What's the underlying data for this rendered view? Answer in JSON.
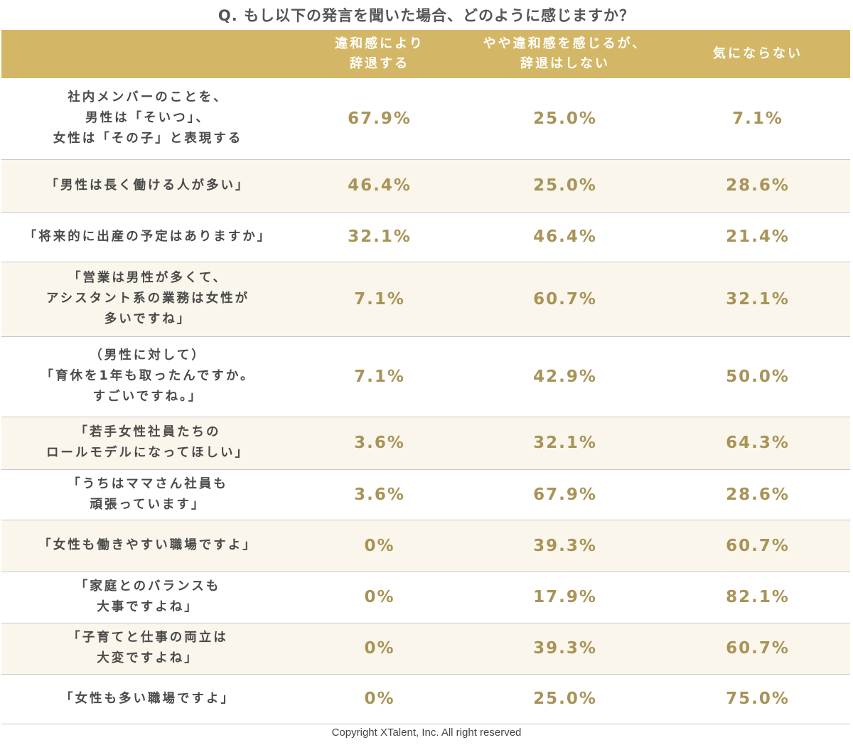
{
  "title": "Q. もし以下の発言を聞いた場合、どのように感じますか？",
  "columns": [
    "違和感により\n辞退する",
    "やや違和感を感じるが、\n辞退はしない",
    "気にならない"
  ],
  "chart_data": {
    "type": "table",
    "series": [
      {
        "name": "違和感により辞退する"
      },
      {
        "name": "やや違和感を感じるが、辞退はしない"
      },
      {
        "name": "気にならない"
      }
    ],
    "rows": [
      {
        "label": "社内メンバーのことを、\n男性は「そいつ」、\n女性は「その子」と表現する",
        "values": [
          "67.9%",
          "25.0%",
          "7.1%"
        ]
      },
      {
        "label": "「男性は長く働ける人が多い」",
        "values": [
          "46.4%",
          "25.0%",
          "28.6%"
        ]
      },
      {
        "label": "「将来的に出産の予定はありますか」",
        "values": [
          "32.1%",
          "46.4%",
          "21.4%"
        ]
      },
      {
        "label": "「営業は男性が多くて、\nアシスタント系の業務は女性が\n多いですね」",
        "values": [
          "7.1%",
          "60.7%",
          "32.1%"
        ]
      },
      {
        "label": "（男性に対して）\n「育休を1年も取ったんですか。\nすごいですね。」",
        "values": [
          "7.1%",
          "42.9%",
          "50.0%"
        ]
      },
      {
        "label": "「若手女性社員たちの\nロールモデルになってほしい」",
        "values": [
          "3.6%",
          "32.1%",
          "64.3%"
        ]
      },
      {
        "label": "「うちはママさん社員も\n頑張っています」",
        "values": [
          "3.6%",
          "67.9%",
          "28.6%"
        ]
      },
      {
        "label": "「女性も働きやすい職場ですよ」",
        "values": [
          "0%",
          "39.3%",
          "60.7%"
        ]
      },
      {
        "label": "「家庭とのバランスも\n大事ですよね」",
        "values": [
          "0%",
          "17.9%",
          "82.1%"
        ]
      },
      {
        "label": "「子育てと仕事の両立は\n大変ですよね」",
        "values": [
          "0%",
          "39.3%",
          "60.7%"
        ]
      },
      {
        "label": "「女性も多い職場ですよ」",
        "values": [
          "0%",
          "25.0%",
          "75.0%"
        ]
      }
    ]
  },
  "colors": {
    "header_bg": "#d4b766",
    "header_text": "#ffffff",
    "value_text": "#a89458",
    "stripe": "#faf6ec"
  },
  "copyright": "Copyright XTalent, Inc. All right reserved"
}
